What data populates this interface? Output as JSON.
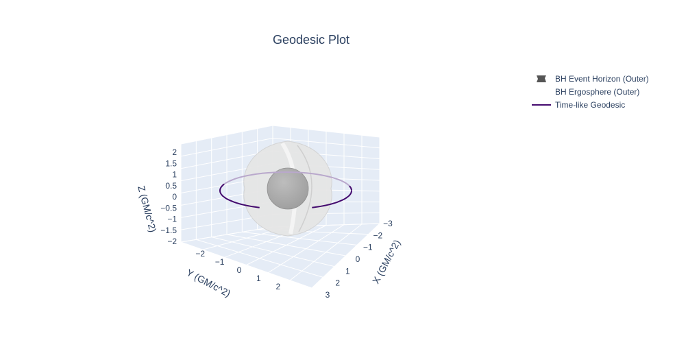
{
  "chart_data": {
    "type": "scatter3d",
    "title": "Geodesic Plot",
    "xlabel": "X (GM/c^2)",
    "ylabel": "Y (GM/c^2)",
    "zlabel": "Z (GM/c^2)",
    "xlim": [
      -3,
      3
    ],
    "ylim": [
      -3,
      3
    ],
    "zlim": [
      -2,
      2
    ],
    "x_ticks": [
      "3",
      "2",
      "1",
      "0",
      "−1",
      "−2",
      "−3"
    ],
    "y_ticks": [
      "−2",
      "−1",
      "0",
      "1",
      "2"
    ],
    "z_ticks": [
      "2",
      "1.5",
      "1",
      "0.5",
      "0",
      "−0.5",
      "−1",
      "−1.5",
      "−2"
    ],
    "legend_position": "top-right",
    "series": [
      {
        "name": "BH Event Horizon (Outer)",
        "kind": "surface",
        "color": "#9e9e9e",
        "radius": 1
      },
      {
        "name": "BH Ergosphere (Outer)",
        "kind": "surface",
        "color": "#e6e6e6",
        "radius": 2
      },
      {
        "name": "Time-like Geodesic",
        "kind": "line",
        "color": "#440a6e",
        "radius": 3
      }
    ],
    "grid": true,
    "background_color": "#e5ecf6"
  }
}
